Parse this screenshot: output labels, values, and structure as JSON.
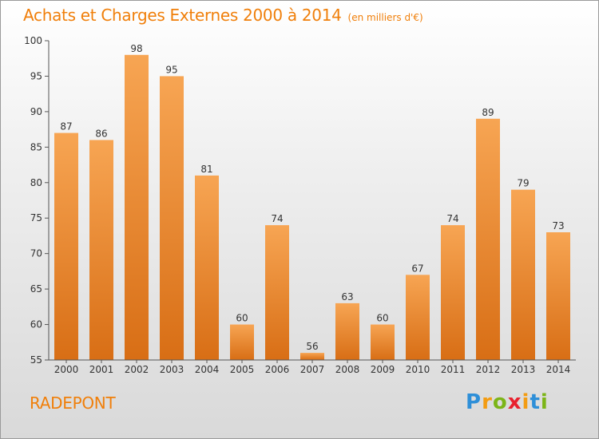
{
  "title": "Achats et Charges Externes 2000 à 2014",
  "unit": "(en milliers d'€)",
  "commune": "RADEPONT",
  "logo": {
    "letters": [
      "P",
      "r",
      "o",
      "x",
      "i",
      "t",
      "i"
    ],
    "colors": [
      "#2e8fd8",
      "#f39c12",
      "#7cb518",
      "#e8212e",
      "#f39c12",
      "#2e8fd8",
      "#7cb518"
    ]
  },
  "colors": {
    "accent": "#f07f0a",
    "bar_top": "#f7a553",
    "bar_bottom": "#d86e15",
    "axis": "#555555"
  },
  "chart_data": {
    "type": "bar",
    "categories": [
      "2000",
      "2001",
      "2002",
      "2003",
      "2004",
      "2005",
      "2006",
      "2007",
      "2008",
      "2009",
      "2010",
      "2011",
      "2012",
      "2013",
      "2014"
    ],
    "values": [
      87,
      86,
      98,
      95,
      81,
      60,
      74,
      56,
      63,
      60,
      67,
      74,
      89,
      79,
      73
    ],
    "ylim": [
      55,
      100
    ],
    "yticks": [
      55,
      60,
      65,
      70,
      75,
      80,
      85,
      90,
      95,
      100
    ],
    "grid": false,
    "xlabel": "",
    "ylabel": ""
  }
}
